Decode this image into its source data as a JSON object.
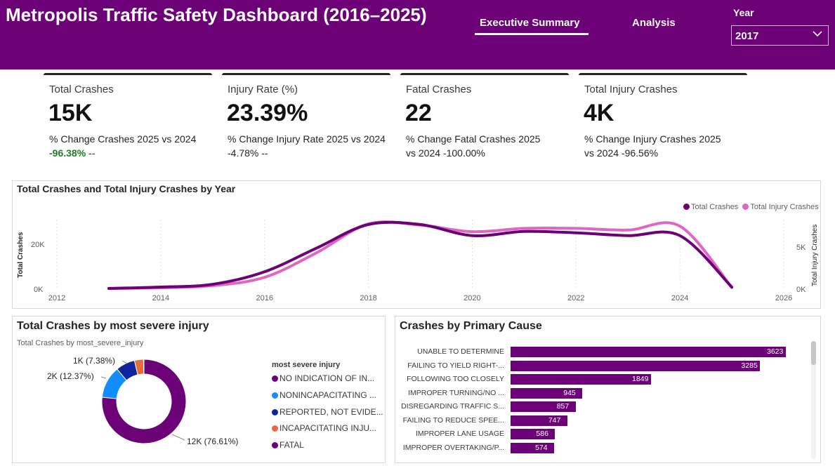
{
  "header": {
    "title": "Metropolis Traffic Safety Dashboard (2016–2025)",
    "tabs": [
      "Executive Summary",
      "Analysis"
    ],
    "active_tab": "Executive Summary",
    "year_label": "Year",
    "year_value": "2017",
    "background": "#6b0077"
  },
  "kpis": [
    {
      "label": "Total Crashes",
      "value": "15K",
      "change_text": "% Change Crashes 2025 vs 2024",
      "change_value": "-96.38%",
      "change_suffix": " --"
    },
    {
      "label": "Injury Rate (%)",
      "value": "23.39%",
      "change_text": "% Change Injury Rate 2025 vs 2024",
      "change_value": "-4.78%",
      "change_suffix": " --"
    },
    {
      "label": "Fatal Crashes",
      "value": "22",
      "change_text": "% Change Fatal Crashes 2025 vs 2024 -100.00%"
    },
    {
      "label": "Total Injury Crashes",
      "value": "4K",
      "change_text": "% Change Injury Crashes 2025 vs 2024 -96.56%"
    }
  ],
  "line_chart": {
    "title": "Total Crashes and Total Injury Crashes by Year",
    "legend": [
      "Total Crashes",
      "Total Injury Crashes"
    ],
    "colors": [
      "#6b0077",
      "#e066c4"
    ],
    "left_axis_title": "Total Crashes",
    "right_axis_title": "Total Injury Crashes",
    "left_ticks": [
      "0K",
      "20K"
    ],
    "right_ticks": [
      "0K",
      "5K"
    ],
    "x_ticks": [
      "2012",
      "2014",
      "2016",
      "2018",
      "2020",
      "2022",
      "2024",
      "2026"
    ]
  },
  "donut": {
    "title": "Total Crashes by most severe injury",
    "subtitle": "Total Crashes by most_severe_injury",
    "legend_title": "most severe injury",
    "legend": [
      {
        "label": "NO INDICATION OF IN...",
        "color": "#6b0077"
      },
      {
        "label": "NONINCAPACITATING ...",
        "color": "#118dff"
      },
      {
        "label": "REPORTED, NOT EVIDE...",
        "color": "#12239e"
      },
      {
        "label": "INCAPACITATING INJU...",
        "color": "#e66c37"
      },
      {
        "label": "FATAL",
        "color": "#6b007b"
      }
    ],
    "labels": [
      "1K (7.38%)",
      "2K (12.37%)",
      "12K (76.61%)"
    ]
  },
  "bar_panel": {
    "title": "Crashes by Primary Cause"
  },
  "chart_data": [
    {
      "type": "line",
      "title": "Total Crashes and Total Injury Crashes by Year",
      "ylabel": "Total Crashes",
      "y2label": "Total Injury Crashes",
      "xlim": [
        2012,
        2026
      ],
      "ylim": [
        0,
        26000
      ],
      "y2lim": [
        0,
        6500
      ],
      "series": [
        {
          "name": "Total Crashes",
          "axis": "left",
          "x": [
            2013,
            2014,
            2015,
            2016,
            2017,
            2018,
            2019,
            2020,
            2021,
            2022,
            2023,
            2024,
            2025
          ],
          "values": [
            0,
            500,
            1500,
            6000,
            14500,
            23000,
            23000,
            19000,
            20500,
            20000,
            19000,
            19000,
            500
          ]
        },
        {
          "name": "Total Injury Crashes",
          "axis": "right",
          "x": [
            2013,
            2014,
            2015,
            2016,
            2017,
            2018,
            2019,
            2020,
            2021,
            2022,
            2023,
            2024,
            2025
          ],
          "values": [
            0,
            60,
            250,
            1000,
            3200,
            5800,
            5700,
            5100,
            5400,
            5400,
            5250,
            5600,
            80
          ]
        }
      ]
    },
    {
      "type": "pie",
      "title": "Total Crashes by most severe injury",
      "categories": [
        "NO INDICATION OF IN...",
        "NONINCAPACITATING ...",
        "REPORTED, NOT EVIDE...",
        "INCAPACITATING INJU...",
        "FATAL"
      ],
      "values": [
        76.61,
        12.37,
        7.38,
        3.49,
        0.15
      ]
    },
    {
      "type": "bar",
      "title": "Crashes by Primary Cause",
      "categories": [
        "UNABLE TO DETERMINE",
        "FAILING TO YIELD RIGHT-...",
        "FOLLOWING TOO CLOSELY",
        "IMPROPER TURNING/NO ...",
        "DISREGARDING TRAFFIC S...",
        "FAILING TO REDUCE SPEE...",
        "IMPROPER LANE USAGE",
        "IMPROPER OVERTAKING/P..."
      ],
      "values": [
        3623,
        3285,
        1849,
        945,
        857,
        747,
        586,
        574
      ]
    }
  ]
}
